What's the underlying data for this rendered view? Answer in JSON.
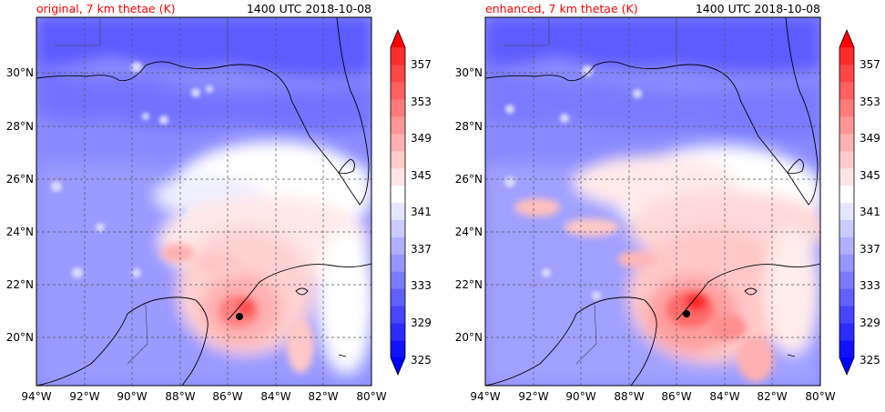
{
  "panels": [
    {
      "title_left": "original, 7 km thetae (K)",
      "title_right": "1400 UTC 2018-10-08",
      "storm_center": {
        "lon": -85.5,
        "lat": 20.8
      }
    },
    {
      "title_left": "enhanced, 7 km thetae (K)",
      "title_right": "1400 UTC 2018-10-08",
      "storm_center": {
        "lon": -85.6,
        "lat": 20.9
      }
    }
  ],
  "map_extent": {
    "lon": [
      -94,
      -80
    ],
    "lat": [
      18,
      31.9
    ]
  },
  "lon_ticks": [
    "94°W",
    "92°W",
    "90°W",
    "88°W",
    "86°W",
    "84°W",
    "82°W",
    "80°W"
  ],
  "lon_tick_values": [
    -94,
    -92,
    -90,
    -88,
    -86,
    -84,
    -82,
    -80
  ],
  "lat_ticks": [
    "20°N",
    "22°N",
    "24°N",
    "26°N",
    "28°N",
    "30°N"
  ],
  "lat_tick_values": [
    20,
    22,
    24,
    26,
    28,
    30
  ],
  "colorbar": {
    "min": 323,
    "max": 359,
    "step": 2,
    "tick_labels": [
      "325",
      "329",
      "333",
      "337",
      "341",
      "345",
      "349",
      "353",
      "357"
    ],
    "tick_values": [
      325,
      329,
      333,
      337,
      341,
      345,
      349,
      353,
      357
    ],
    "colors": [
      "#1111ff",
      "#2c2cff",
      "#4646ff",
      "#6161ff",
      "#7b7bff",
      "#9696ff",
      "#b0b0ff",
      "#cbcbff",
      "#e5e5ff",
      "#ffffff",
      "#ffe5e5",
      "#ffcbcb",
      "#ffb0b0",
      "#ff9696",
      "#ff7b7b",
      "#ff6161",
      "#ff4646",
      "#ff2c2c"
    ],
    "under_color": "#0000ff",
    "over_color": "#ff0000"
  },
  "colors": {
    "title": "#ff0000",
    "grid": "#555555",
    "coast": "#000000",
    "storm": "#000000"
  }
}
